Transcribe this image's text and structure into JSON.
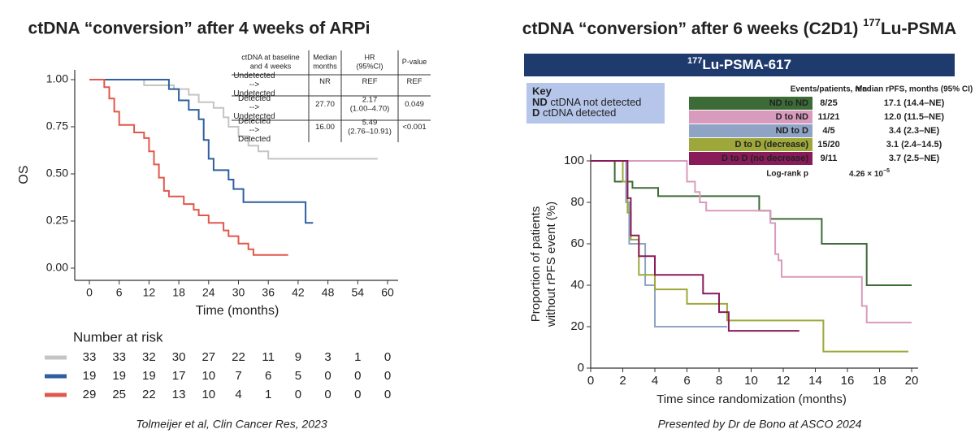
{
  "chart_data": [
    {
      "type": "line",
      "title": "ctDNA “conversion” after 4 weeks of ARPi",
      "x_label": "Time (months)",
      "y_label": "OS",
      "xlim": [
        -3,
        63
      ],
      "ylim": [
        -0.05,
        1.05
      ],
      "xticks": [
        0,
        6,
        12,
        18,
        24,
        30,
        36,
        42,
        48,
        54,
        60
      ],
      "yticks": [
        {
          "value": 0,
          "label": "0.00"
        },
        {
          "value": 0.25,
          "label": "0.25"
        },
        {
          "value": 0.5,
          "label": "0.50"
        },
        {
          "value": 0.75,
          "label": "0.75"
        },
        {
          "value": 1,
          "label": "1.00"
        }
      ],
      "table_headers": [
        "ctDNA at baseline and 4 weeks",
        "Median months",
        "HR (95%CI)",
        "P-value"
      ],
      "risk_title": "Number at risk",
      "caption": "Tolmeijer et al, Clin Cancer Res, 2023",
      "series": [
        {
          "name": "Undetected --> Undetected",
          "color": "#c4c4c4",
          "median": "NR",
          "hr": "REF",
          "p": "REF",
          "x": [
            0,
            11,
            11,
            17,
            17,
            20,
            20,
            22,
            22,
            25,
            25,
            27,
            27,
            28,
            28,
            30,
            30,
            32,
            32,
            34,
            34,
            36,
            36,
            58
          ],
          "values": [
            1,
            1,
            0.97,
            0.97,
            0.95,
            0.95,
            0.92,
            0.92,
            0.88,
            0.88,
            0.85,
            0.85,
            0.8,
            0.8,
            0.75,
            0.75,
            0.7,
            0.7,
            0.65,
            0.65,
            0.62,
            0.62,
            0.58,
            0.58
          ],
          "at_risk": [
            33,
            33,
            32,
            30,
            27,
            22,
            11,
            9,
            3,
            1,
            0
          ]
        },
        {
          "name": "Detected --> Undetected",
          "color": "#2f5f9e",
          "median": "27.70",
          "hr": "2.17 (1.00–4.70)",
          "p": "0.049",
          "x": [
            0,
            16,
            16,
            18,
            18,
            20,
            20,
            22,
            22,
            23,
            23,
            24,
            24,
            25,
            25,
            28,
            28,
            29,
            29,
            31,
            31,
            43.5,
            43.5,
            45
          ],
          "values": [
            1,
            1,
            0.95,
            0.95,
            0.89,
            0.89,
            0.84,
            0.84,
            0.79,
            0.79,
            0.68,
            0.68,
            0.58,
            0.58,
            0.52,
            0.52,
            0.47,
            0.47,
            0.42,
            0.42,
            0.35,
            0.35,
            0.24,
            0.24
          ],
          "at_risk": [
            19,
            19,
            19,
            17,
            10,
            7,
            6,
            5,
            0,
            0,
            0
          ]
        },
        {
          "name": "Detected --> Detected",
          "color": "#e0584c",
          "median": "16.00",
          "hr": "5.49 (2.76–10.91)",
          "p": "<0.001",
          "x": [
            0,
            3,
            3,
            4,
            4,
            5,
            5,
            6,
            6,
            9,
            9,
            11,
            11,
            12,
            12,
            13,
            13,
            14,
            14,
            15,
            15,
            16,
            16,
            19,
            19,
            21,
            21,
            22,
            22,
            24,
            24,
            27,
            27,
            28,
            28,
            30,
            30,
            32,
            32,
            33,
            33,
            40
          ],
          "values": [
            1,
            1,
            0.96,
            0.96,
            0.9,
            0.9,
            0.83,
            0.83,
            0.76,
            0.76,
            0.72,
            0.72,
            0.69,
            0.69,
            0.62,
            0.62,
            0.55,
            0.55,
            0.48,
            0.48,
            0.41,
            0.41,
            0.38,
            0.38,
            0.34,
            0.34,
            0.31,
            0.31,
            0.28,
            0.28,
            0.24,
            0.24,
            0.2,
            0.2,
            0.17,
            0.17,
            0.13,
            0.13,
            0.1,
            0.1,
            0.07,
            0.07
          ],
          "at_risk": [
            29,
            25,
            22,
            13,
            10,
            4,
            1,
            0,
            0,
            0,
            0
          ]
        }
      ]
    },
    {
      "type": "line",
      "title": {
        "text": "ctDNA “conversion” after 6 weeks (C2D1) ",
        "sup": "177",
        "suffix": "Lu-PSMA"
      },
      "banner": {
        "sup": "177",
        "text": "Lu-PSMA-617"
      },
      "key": {
        "title": "Key",
        "items": [
          {
            "abbr": "ND",
            "text": "ctDNA not detected"
          },
          {
            "abbr": "D",
            "text": "ctDNA detected"
          }
        ]
      },
      "table_headers": [
        "Events/patients, n/n",
        "Median rPFS, months (95% CI)"
      ],
      "logrank": {
        "label": "Log-rank p",
        "value": "4.26 × 10",
        "exp": "−5"
      },
      "x_label": "Time since randomization (months)",
      "y_label": [
        "Proportion of patients",
        "without rPFS event (%)"
      ],
      "xlim": [
        0,
        20.2
      ],
      "ylim": [
        0,
        100
      ],
      "xticks": [
        0,
        2,
        4,
        6,
        8,
        10,
        12,
        14,
        16,
        18,
        20
      ],
      "yticks": [
        0,
        20,
        40,
        60,
        80,
        100
      ],
      "caption": "Presented by Dr de Bono at ASCO 2024",
      "series": [
        {
          "name": "ND to ND",
          "color": "#3d6b37",
          "events": "8/25",
          "median": "17.1 (14.4–NE)",
          "x": [
            0,
            1.5,
            1.5,
            2.6,
            2.6,
            4.2,
            4.2,
            10.5,
            10.5,
            11.2,
            11.2,
            14.4,
            14.4,
            17.2,
            17.2,
            20
          ],
          "values": [
            100,
            100,
            90,
            90,
            87,
            87,
            83,
            83,
            76,
            76,
            72,
            72,
            60,
            60,
            40,
            40
          ]
        },
        {
          "name": "D to ND",
          "color": "#d99bbd",
          "events": "11/21",
          "median": "12.0 (11.5–NE)",
          "x": [
            0,
            6,
            6,
            6.5,
            6.5,
            6.8,
            6.8,
            7.2,
            7.2,
            11.2,
            11.2,
            11.5,
            11.5,
            11.7,
            11.7,
            11.9,
            11.9,
            16.9,
            16.9,
            17.2,
            17.2,
            20
          ],
          "values": [
            100,
            100,
            90,
            90,
            85,
            85,
            80,
            80,
            76,
            76,
            70,
            70,
            55,
            55,
            52,
            52,
            44,
            44,
            30,
            30,
            22,
            22
          ]
        },
        {
          "name": "ND to D",
          "color": "#8fa3c4",
          "events": "4/5",
          "median": "3.4 (2.3–NE)",
          "x": [
            0,
            2.2,
            2.2,
            2.4,
            2.4,
            3.4,
            3.4,
            4,
            4,
            8.5
          ],
          "values": [
            100,
            100,
            80,
            80,
            60,
            60,
            40,
            40,
            20,
            20
          ]
        },
        {
          "name": "D to D (decrease)",
          "color": "#9ea83a",
          "events": "15/20",
          "median": "3.1 (2.4–14.5)",
          "x": [
            0,
            2,
            2,
            2.3,
            2.3,
            2.5,
            2.5,
            3,
            3,
            4,
            4,
            6,
            6,
            8.5,
            8.5,
            14.5,
            14.5,
            19.8
          ],
          "values": [
            100,
            100,
            90,
            90,
            75,
            75,
            62,
            62,
            45,
            45,
            38,
            38,
            31,
            31,
            23,
            23,
            8,
            8
          ]
        },
        {
          "name": "D to D (no decrease)",
          "color": "#8a1b5a",
          "events": "9/11",
          "median": "3.7 (2.5–NE)",
          "x": [
            0,
            2.3,
            2.3,
            2.5,
            2.5,
            3,
            3,
            4,
            4,
            7,
            7,
            8,
            8,
            8.6,
            8.6,
            13
          ],
          "values": [
            100,
            100,
            82,
            82,
            64,
            64,
            54,
            54,
            45,
            45,
            36,
            36,
            27,
            27,
            18,
            18
          ]
        }
      ]
    }
  ]
}
